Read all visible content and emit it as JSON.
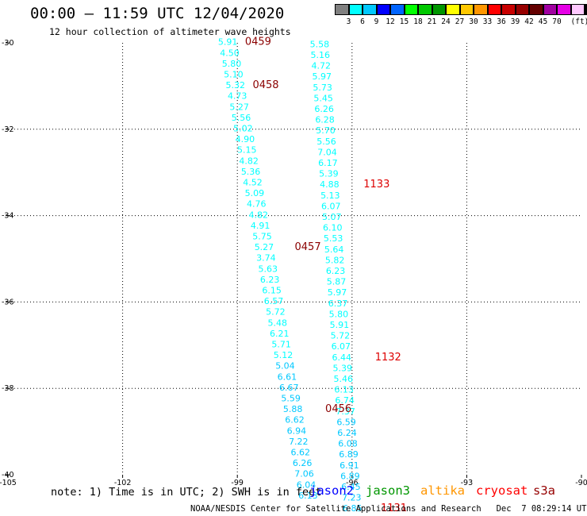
{
  "header": {
    "title": "00:00 – 11:59 UTC 12/04/2020",
    "subtitle": "12 hour collection of altimeter wave heights"
  },
  "legend": {
    "colors": [
      "#808080",
      "#00ffff",
      "#00c8ff",
      "#0000ff",
      "#0064ff",
      "#00ff00",
      "#00c800",
      "#009600",
      "#ffff00",
      "#ffc800",
      "#ff9600",
      "#ff0000",
      "#c80000",
      "#960000",
      "#640000",
      "#a000a0",
      "#e600e6",
      "#ffc8ff",
      "#000000"
    ],
    "labels": [
      "3",
      "6",
      "9",
      "12",
      "15",
      "18",
      "21",
      "24",
      "27",
      "30",
      "33",
      "36",
      "39",
      "42",
      "45",
      "70",
      "(ft)"
    ]
  },
  "axes": {
    "x_ticks": [
      "-105",
      "-102",
      "-99",
      "-96",
      "-93",
      "-90"
    ],
    "y_ticks": [
      "-30",
      "-32",
      "-34",
      "-36",
      "-38",
      "-40"
    ]
  },
  "chart_data": {
    "type": "scatter",
    "xlim": [
      -105,
      -90
    ],
    "ylim": [
      -40,
      -30
    ],
    "grid": "dotted",
    "tracks": [
      {
        "satellite": "altika",
        "color": "#00ffff",
        "points": [
          {
            "lon": -99.25,
            "lat": -30.05,
            "swh": "5.91"
          },
          {
            "lon": -99.2,
            "lat": -30.3,
            "swh": "4.50"
          },
          {
            "lon": -99.15,
            "lat": -30.55,
            "swh": "5.80"
          },
          {
            "lon": -99.1,
            "lat": -30.8,
            "swh": "5.10"
          },
          {
            "lon": -99.05,
            "lat": -31.05,
            "swh": "5.32"
          },
          {
            "lon": -99.0,
            "lat": -31.3,
            "swh": "4.73"
          },
          {
            "lon": -98.95,
            "lat": -31.55,
            "swh": "5.27"
          },
          {
            "lon": -98.9,
            "lat": -31.8,
            "swh": "5.56"
          },
          {
            "lon": -98.85,
            "lat": -32.05,
            "swh": "5.02"
          },
          {
            "lon": -98.8,
            "lat": -32.3,
            "swh": "4.90"
          },
          {
            "lon": -98.75,
            "lat": -32.55,
            "swh": "5.15"
          },
          {
            "lon": -98.7,
            "lat": -32.8,
            "swh": "4.82"
          },
          {
            "lon": -98.65,
            "lat": -33.05,
            "swh": "5.36"
          },
          {
            "lon": -98.6,
            "lat": -33.3,
            "swh": "4.52"
          },
          {
            "lon": -98.55,
            "lat": -33.55,
            "swh": "5.09"
          },
          {
            "lon": -98.5,
            "lat": -33.8,
            "swh": "4.76"
          },
          {
            "lon": -98.45,
            "lat": -34.05,
            "swh": "4.82"
          },
          {
            "lon": -98.4,
            "lat": -34.3,
            "swh": "4.91"
          },
          {
            "lon": -98.35,
            "lat": -34.55,
            "swh": "5.75"
          },
          {
            "lon": -98.3,
            "lat": -34.8,
            "swh": "5.27"
          },
          {
            "lon": -98.25,
            "lat": -35.05,
            "swh": "3.74"
          },
          {
            "lon": -98.2,
            "lat": -35.3,
            "swh": "5.63"
          },
          {
            "lon": -98.15,
            "lat": -35.55,
            "swh": "6.23"
          },
          {
            "lon": -98.1,
            "lat": -35.8,
            "swh": "6.15"
          },
          {
            "lon": -98.05,
            "lat": -36.05,
            "swh": "6.57"
          },
          {
            "lon": -98.0,
            "lat": -36.3,
            "swh": "5.72"
          },
          {
            "lon": -97.95,
            "lat": -36.55,
            "swh": "5.48"
          },
          {
            "lon": -97.9,
            "lat": -36.8,
            "swh": "6.21"
          },
          {
            "lon": -97.85,
            "lat": -37.05,
            "swh": "5.71"
          },
          {
            "lon": -97.8,
            "lat": -37.3,
            "swh": "5.12"
          }
        ]
      },
      {
        "satellite": "altika",
        "color": "#00c8ff",
        "points": [
          {
            "lon": -97.75,
            "lat": -37.55,
            "swh": "5.04"
          },
          {
            "lon": -97.7,
            "lat": -37.8,
            "swh": "6.61"
          },
          {
            "lon": -97.65,
            "lat": -38.05,
            "swh": "6.67"
          },
          {
            "lon": -97.6,
            "lat": -38.3,
            "swh": "5.59"
          },
          {
            "lon": -97.55,
            "lat": -38.55,
            "swh": "5.88"
          },
          {
            "lon": -97.5,
            "lat": -38.8,
            "swh": "6.62"
          },
          {
            "lon": -97.45,
            "lat": -39.05,
            "swh": "6.94"
          },
          {
            "lon": -97.4,
            "lat": -39.3,
            "swh": "7.22"
          },
          {
            "lon": -97.35,
            "lat": -39.55,
            "swh": "6.62"
          },
          {
            "lon": -97.3,
            "lat": -39.8,
            "swh": "6.26"
          },
          {
            "lon": -97.25,
            "lat": -40.05,
            "swh": "7.06"
          },
          {
            "lon": -97.2,
            "lat": -40.3,
            "swh": "6.04"
          },
          {
            "lon": -97.15,
            "lat": -40.55,
            "swh": "6.13"
          }
        ]
      },
      {
        "satellite": "altika",
        "color": "#00ffff",
        "points": [
          {
            "lon": -96.85,
            "lat": -30.1,
            "swh": "5.58"
          },
          {
            "lon": -96.83,
            "lat": -30.35,
            "swh": "5.16"
          },
          {
            "lon": -96.81,
            "lat": -30.6,
            "swh": "4.72"
          },
          {
            "lon": -96.79,
            "lat": -30.85,
            "swh": "5.97"
          },
          {
            "lon": -96.77,
            "lat": -31.1,
            "swh": "5.73"
          },
          {
            "lon": -96.75,
            "lat": -31.35,
            "swh": "5.45"
          },
          {
            "lon": -96.73,
            "lat": -31.6,
            "swh": "6.26"
          },
          {
            "lon": -96.71,
            "lat": -31.85,
            "swh": "6.28"
          },
          {
            "lon": -96.69,
            "lat": -32.1,
            "swh": "5.70"
          },
          {
            "lon": -96.67,
            "lat": -32.35,
            "swh": "5.56"
          },
          {
            "lon": -96.65,
            "lat": -32.6,
            "swh": "7.04"
          },
          {
            "lon": -96.63,
            "lat": -32.85,
            "swh": "6.17"
          },
          {
            "lon": -96.61,
            "lat": -33.1,
            "swh": "5.39"
          },
          {
            "lon": -96.59,
            "lat": -33.35,
            "swh": "4.88"
          },
          {
            "lon": -96.57,
            "lat": -33.6,
            "swh": "5.13"
          },
          {
            "lon": -96.55,
            "lat": -33.85,
            "swh": "6.07"
          },
          {
            "lon": -96.53,
            "lat": -34.1,
            "swh": "5.07"
          },
          {
            "lon": -96.51,
            "lat": -34.35,
            "swh": "6.10"
          },
          {
            "lon": -96.49,
            "lat": -34.6,
            "swh": "5.53"
          },
          {
            "lon": -96.47,
            "lat": -34.85,
            "swh": "5.64"
          },
          {
            "lon": -96.45,
            "lat": -35.1,
            "swh": "5.82"
          },
          {
            "lon": -96.43,
            "lat": -35.35,
            "swh": "6.23"
          },
          {
            "lon": -96.41,
            "lat": -35.6,
            "swh": "5.87"
          },
          {
            "lon": -96.39,
            "lat": -35.85,
            "swh": "5.97"
          },
          {
            "lon": -96.37,
            "lat": -36.1,
            "swh": "6.37"
          },
          {
            "lon": -96.35,
            "lat": -36.35,
            "swh": "5.80"
          },
          {
            "lon": -96.33,
            "lat": -36.6,
            "swh": "5.91"
          },
          {
            "lon": -96.31,
            "lat": -36.85,
            "swh": "5.72"
          },
          {
            "lon": -96.29,
            "lat": -37.1,
            "swh": "6.07"
          },
          {
            "lon": -96.27,
            "lat": -37.35,
            "swh": "6.44"
          },
          {
            "lon": -96.25,
            "lat": -37.6,
            "swh": "5.39"
          },
          {
            "lon": -96.23,
            "lat": -37.85,
            "swh": "5.46"
          },
          {
            "lon": -96.21,
            "lat": -38.1,
            "swh": "6.13"
          },
          {
            "lon": -96.19,
            "lat": -38.35,
            "swh": "6.74"
          },
          {
            "lon": -96.17,
            "lat": -38.6,
            "swh": "7.37"
          }
        ]
      },
      {
        "satellite": "altika",
        "color": "#00c8ff",
        "points": [
          {
            "lon": -96.15,
            "lat": -38.85,
            "swh": "6.59"
          },
          {
            "lon": -96.13,
            "lat": -39.1,
            "swh": "6.24"
          },
          {
            "lon": -96.11,
            "lat": -39.35,
            "swh": "6.08"
          },
          {
            "lon": -96.09,
            "lat": -39.6,
            "swh": "6.89"
          },
          {
            "lon": -96.07,
            "lat": -39.85,
            "swh": "6.91"
          },
          {
            "lon": -96.05,
            "lat": -40.1,
            "swh": "6.89"
          },
          {
            "lon": -96.03,
            "lat": -40.35,
            "swh": "6.45"
          },
          {
            "lon": -96.01,
            "lat": -40.6,
            "swh": "7.23"
          },
          {
            "lon": -95.99,
            "lat": -40.85,
            "swh": "6.85"
          }
        ]
      }
    ],
    "time_labels": [
      {
        "text": "0459",
        "lon": -98.8,
        "lat": -30.05,
        "color": "#8b0000"
      },
      {
        "text": "0458",
        "lon": -98.6,
        "lat": -31.05,
        "color": "#8b0000"
      },
      {
        "text": "0457",
        "lon": -97.5,
        "lat": -34.8,
        "color": "#8b0000"
      },
      {
        "text": "0456",
        "lon": -96.7,
        "lat": -38.55,
        "color": "#8b0000"
      },
      {
        "text": "1133",
        "lon": -95.7,
        "lat": -33.35,
        "color": "#dd0000"
      },
      {
        "text": "1132",
        "lon": -95.4,
        "lat": -37.35,
        "color": "#dd0000"
      },
      {
        "text": "1131",
        "lon": -95.25,
        "lat": -40.85,
        "color": "#dd0000"
      }
    ]
  },
  "footer": {
    "note": "note: 1) Time is in UTC; 2) SWH is in feet",
    "satellites": [
      {
        "name": "jason2",
        "color": "#0000ff"
      },
      {
        "name": "jason3",
        "color": "#009600"
      },
      {
        "name": "altika",
        "color": "#ff9600"
      },
      {
        "name": "cryosat",
        "color": "#ff0000"
      },
      {
        "name": "s3a",
        "color": "#960000"
      }
    ],
    "credit": "NOAA/NESDIS Center for Satellite Applications and Research   Dec  7 08:29:14 UTC 2020"
  }
}
